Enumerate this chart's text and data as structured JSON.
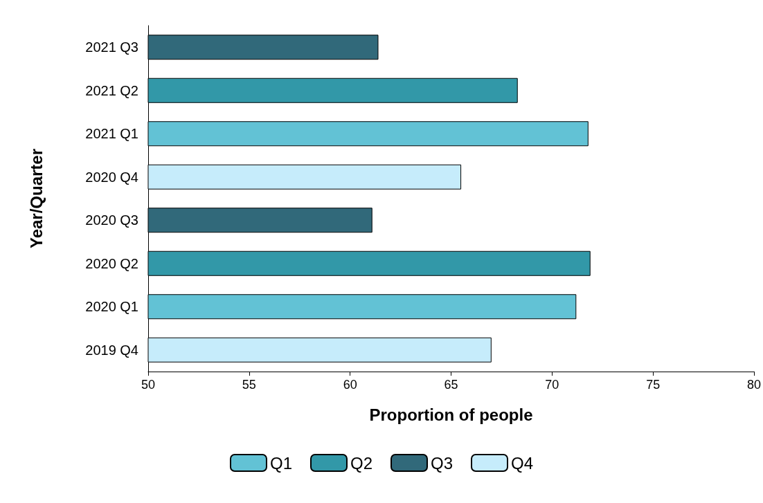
{
  "chart_data": {
    "type": "bar",
    "orientation": "horizontal",
    "xlabel": "Proportion of people",
    "ylabel": "Year/Quarter",
    "categories": [
      "2021 Q3",
      "2021 Q2",
      "2021 Q1",
      "2020 Q4",
      "2020 Q3",
      "2020 Q2",
      "2020 Q1",
      "2019 Q4"
    ],
    "series": [
      {
        "name": "Q1",
        "color": "#62c2d5",
        "values": [
          null,
          null,
          71.8,
          null,
          null,
          null,
          71.2,
          null
        ]
      },
      {
        "name": "Q2",
        "color": "#3298a8",
        "values": [
          null,
          68.3,
          null,
          null,
          null,
          71.9,
          null,
          null
        ]
      },
      {
        "name": "Q3",
        "color": "#31697a",
        "values": [
          61.4,
          null,
          null,
          null,
          61.1,
          null,
          null,
          null
        ]
      },
      {
        "name": "Q4",
        "color": "#c6ecfb",
        "values": [
          null,
          null,
          null,
          65.5,
          null,
          null,
          null,
          67.0
        ]
      }
    ],
    "xlim": [
      50,
      80
    ],
    "xticks": [
      50,
      55,
      60,
      65,
      70,
      75,
      80
    ],
    "grid": false,
    "legend": "bottom"
  }
}
